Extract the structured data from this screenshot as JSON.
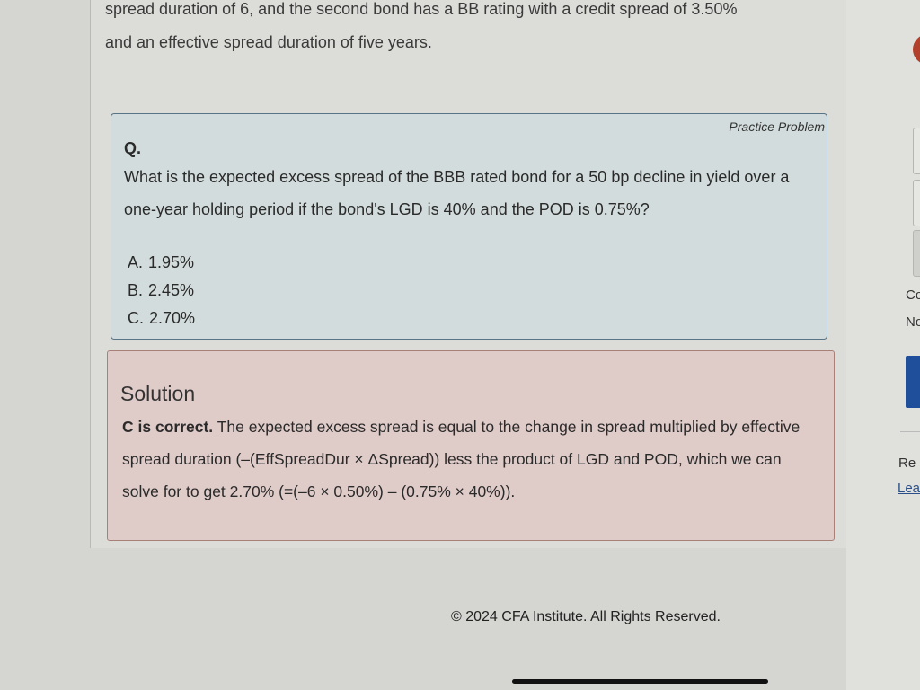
{
  "intro": {
    "line1": "spread duration of 6, and the second bond has a BB rating with a credit spread of 3.50%",
    "line2": "and an effective spread duration of five years."
  },
  "practice": {
    "badge": "Practice Problem",
    "q_label": "Q.",
    "question": "What is the expected excess spread of the BBB rated bond for a 50 bp decline in yield over a one-year holding period if the bond's LGD is 40% and the POD is 0.75%?",
    "options": [
      {
        "letter": "A.",
        "text": "1.95%"
      },
      {
        "letter": "B.",
        "text": "2.45%"
      },
      {
        "letter": "C.",
        "text": "2.70%"
      }
    ]
  },
  "solution": {
    "title": "Solution",
    "lead": "C is correct.",
    "text": " The expected excess spread is equal to the change in spread multiplied by effective spread duration (–(EffSpreadDur × ΔSpread)) less the product of LGD and POD, which we can solve for to get 2.70% (=(–6 × 0.50%) – (0.75% × 40%))."
  },
  "footer": "© 2024 CFA Institute. All Rights Reserved.",
  "sidebar": {
    "text1": "Co",
    "text2": "No",
    "text3": "Re",
    "link": "Lea"
  },
  "colors": {
    "accent_blue": "#1f4f9a",
    "red_dot": "#b2402a"
  }
}
